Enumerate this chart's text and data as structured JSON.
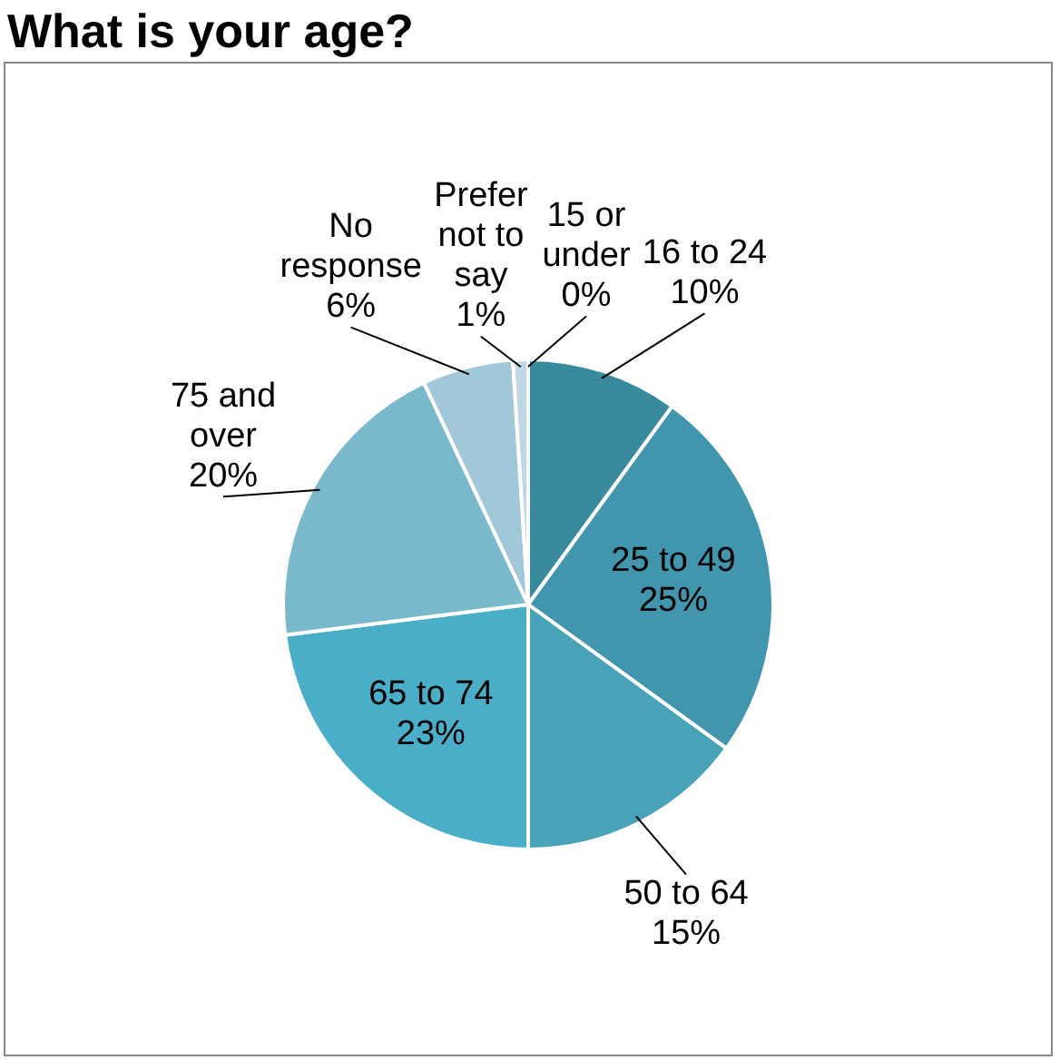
{
  "chart_data": {
    "type": "pie",
    "title": "What is your age?",
    "categories": [
      "15 or under",
      "16 to 24",
      "25 to 49",
      "50 to 64",
      "65 to 74",
      "75 and over",
      "No response",
      "Prefer not to say"
    ],
    "values": [
      0,
      10,
      25,
      15,
      23,
      20,
      6,
      1
    ],
    "value_labels": [
      "0%",
      "10%",
      "25%",
      "15%",
      "23%",
      "20%",
      "6%",
      "1%"
    ],
    "colors": [
      "#2f7d91",
      "#3a8a9e",
      "#4196ae",
      "#48a3b9",
      "#4aaec8",
      "#7ab8cc",
      "#a0c8d8",
      "#c0d8e4"
    ],
    "legend": false
  }
}
